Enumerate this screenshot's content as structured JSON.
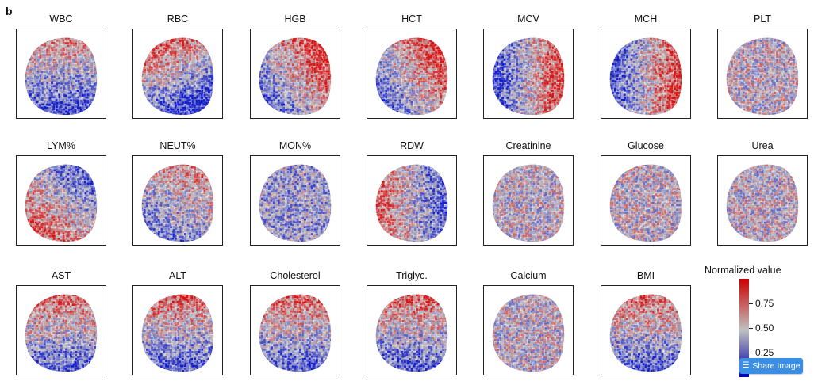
{
  "panel_letter": "b",
  "panels": [
    {
      "title": "WBC",
      "pattern": "lower-blue"
    },
    {
      "title": "RBC",
      "pattern": "upper-left-red"
    },
    {
      "title": "HGB",
      "pattern": "upper-right-red"
    },
    {
      "title": "HCT",
      "pattern": "upper-right-red"
    },
    {
      "title": "MCV",
      "pattern": "left-blue-right-red"
    },
    {
      "title": "MCH",
      "pattern": "left-blue-right-red"
    },
    {
      "title": "PLT",
      "pattern": "mixed"
    },
    {
      "title": "LYM%",
      "pattern": "lower-left-red"
    },
    {
      "title": "NEUT%",
      "pattern": "lower-left-blue"
    },
    {
      "title": "MON%",
      "pattern": "mixed-blue"
    },
    {
      "title": "RDW",
      "pattern": "left-red"
    },
    {
      "title": "Creatinine",
      "pattern": "mixed"
    },
    {
      "title": "Glucose",
      "pattern": "mixed"
    },
    {
      "title": "Urea",
      "pattern": "mixed"
    },
    {
      "title": "AST",
      "pattern": "top-red-bottom-blue"
    },
    {
      "title": "ALT",
      "pattern": "top-red-bottom-blue"
    },
    {
      "title": "Cholesterol",
      "pattern": "top-red-bottom-blue"
    },
    {
      "title": "Triglyc.",
      "pattern": "top-red-bottom-blue"
    },
    {
      "title": "Calcium",
      "pattern": "mixed"
    },
    {
      "title": "BMI",
      "pattern": "top-red-bottom-blue"
    }
  ],
  "colorbar": {
    "title": "Normalized value",
    "ticks": [
      {
        "value": 0.75,
        "label": "0.75"
      },
      {
        "value": 0.5,
        "label": "0.50"
      },
      {
        "value": 0.25,
        "label": "0.25"
      }
    ],
    "low_color": "#0000cc",
    "mid_color": "#c0c0c0",
    "high_color": "#cc0000"
  },
  "share_button": {
    "label": "Share Image",
    "icon": "layers-icon"
  }
}
